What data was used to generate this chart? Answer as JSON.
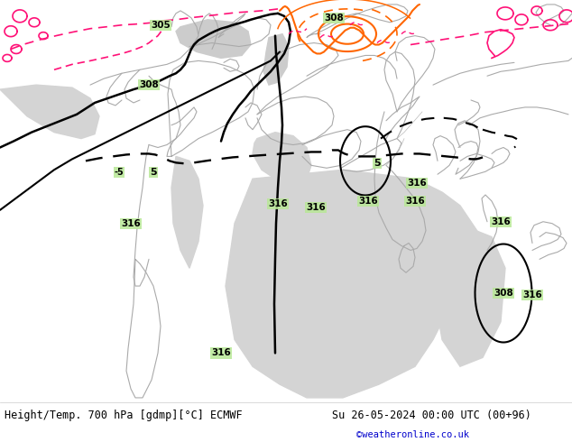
{
  "bg_land": "#b8e896",
  "bg_ocean": "#d8d8d8",
  "bottom_bg": "#ffffff",
  "bottom_text_left": "Height/Temp. 700 hPa [gdmp][°C] ECMWF",
  "bottom_text_right": "Su 26-05-2024 00:00 UTC (00+96)",
  "bottom_text_credit": "©weatheronline.co.uk",
  "bottom_text_color": "#000000",
  "credit_color": "#0000cc",
  "pink": "#FF1177",
  "orange": "#FF6600",
  "black": "#000000",
  "gray_coast": "#aaaaaa",
  "gray_border": "#bbbbbb",
  "fig_width": 6.34,
  "fig_height": 4.9,
  "dpi": 100
}
